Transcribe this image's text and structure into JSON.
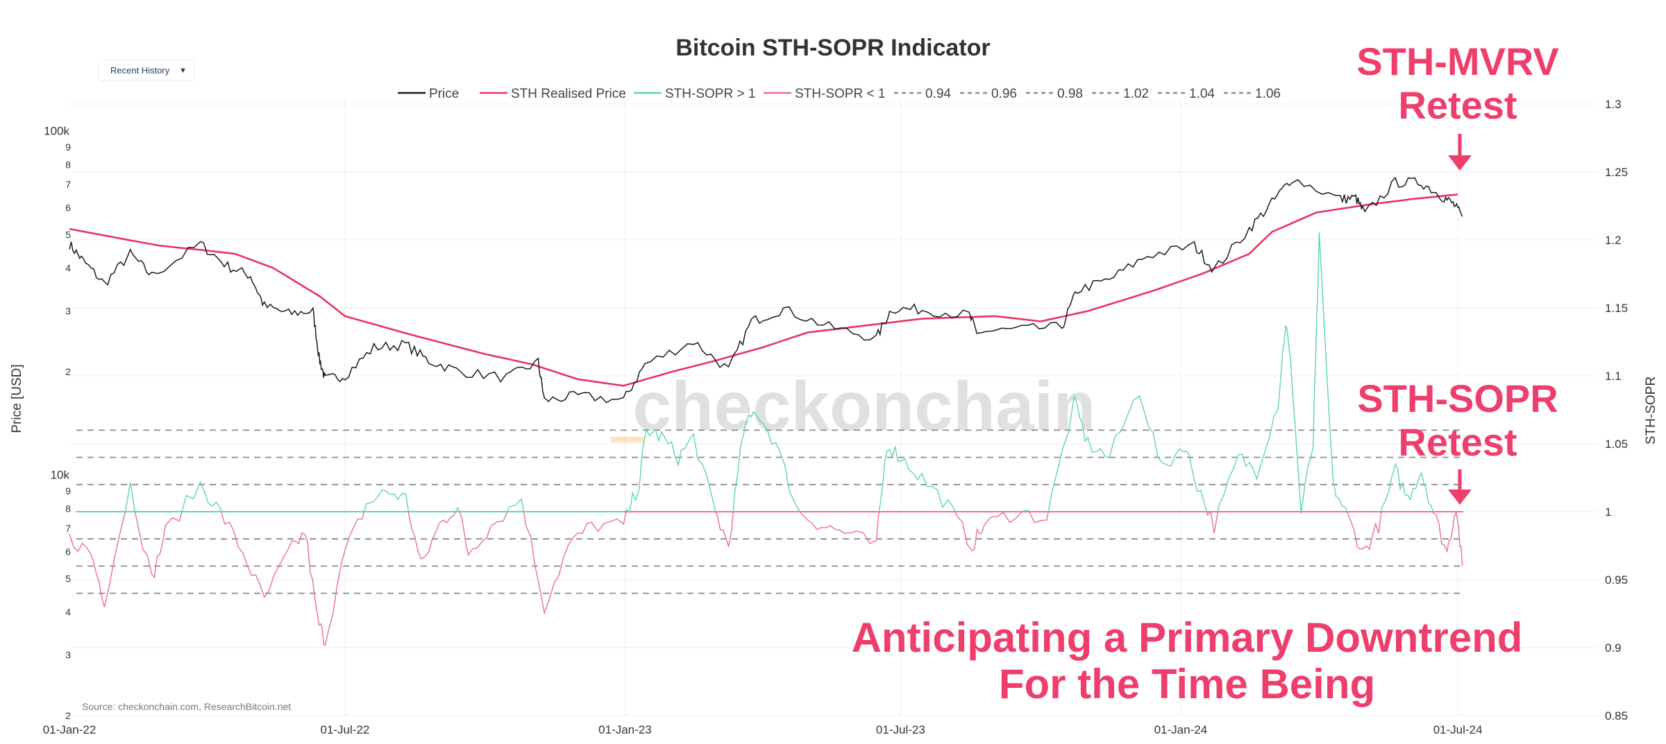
{
  "controls": {
    "history_select": "Recent History"
  },
  "source_text": "Source: checkonchain.com, ResearchBitcoin.net",
  "watermark": "checkonchain",
  "annotations": {
    "mvrv_line1": "STH-MVRV",
    "mvrv_line2": "Retest",
    "sopr_line1": "STH-SOPR",
    "sopr_line2": "Retest",
    "bottom_line1": "Anticipating a Primary Downtrend",
    "bottom_line2": "For the Time Being"
  },
  "colors": {
    "price": "#1a1a1a",
    "sth_realised": "#e8345f",
    "sopr_up": "#5fd6a0",
    "sopr_down": "#e8708e",
    "annotation": "#ee3e6b",
    "dashed": "#8c8c8c",
    "grid": "#ececec"
  },
  "chart_data": {
    "type": "line",
    "title": "Bitcoin STH-SOPR Indicator",
    "ylabel_left": "Price [USD]",
    "ylabel_right": "STH-SOPR",
    "legend_position": "top",
    "x_ticks": [
      "01-Jan-22",
      "01-Jul-22",
      "01-Jan-23",
      "01-Jul-23",
      "01-Jan-24",
      "01-Jul-24"
    ],
    "y_left_scale": "log",
    "y_left_ticks": [
      "2",
      "3",
      "4",
      "5",
      "6",
      "7",
      "8",
      "9",
      "10k",
      "2",
      "3",
      "4",
      "5",
      "6",
      "7",
      "8",
      "9",
      "100k"
    ],
    "y_left_range": [
      2000,
      120000
    ],
    "y_right_ticks": [
      "0.85",
      "0.9",
      "0.95",
      "1",
      "1.05",
      "1.1",
      "1.15",
      "1.2",
      "1.25",
      "1.3"
    ],
    "y_right_range": [
      0.85,
      1.3
    ],
    "legend": [
      "Price",
      "STH Realised Price",
      "STH-SOPR > 1",
      "STH-SOPR < 1",
      "0.94",
      "0.96",
      "0.98",
      "1.02",
      "1.04",
      "1.06"
    ],
    "reference_lines": [
      0.94,
      0.96,
      0.98,
      1.0,
      1.02,
      1.04,
      1.06
    ],
    "series": [
      {
        "name": "Price",
        "points": [
          [
            "2022-01-01",
            47000
          ],
          [
            "2022-01-10",
            42000
          ],
          [
            "2022-01-24",
            36000
          ],
          [
            "2022-02-10",
            44000
          ],
          [
            "2022-02-24",
            38000
          ],
          [
            "2022-03-28",
            47000
          ],
          [
            "2022-04-15",
            40500
          ],
          [
            "2022-04-30",
            38000
          ],
          [
            "2022-05-09",
            31000
          ],
          [
            "2022-05-25",
            29500
          ],
          [
            "2022-06-10",
            30000
          ],
          [
            "2022-06-14",
            22000
          ],
          [
            "2022-06-18",
            19000
          ],
          [
            "2022-07-01",
            19500
          ],
          [
            "2022-07-20",
            23500
          ],
          [
            "2022-08-10",
            24000
          ],
          [
            "2022-08-25",
            21500
          ],
          [
            "2022-09-15",
            20000
          ],
          [
            "2022-10-15",
            19200
          ],
          [
            "2022-11-05",
            21300
          ],
          [
            "2022-11-09",
            16500
          ],
          [
            "2022-12-01",
            17000
          ],
          [
            "2022-12-31",
            16500
          ],
          [
            "2023-01-14",
            21000
          ],
          [
            "2023-02-15",
            24500
          ],
          [
            "2023-03-10",
            20200
          ],
          [
            "2023-03-25",
            28000
          ],
          [
            "2023-04-15",
            30400
          ],
          [
            "2023-05-15",
            27000
          ],
          [
            "2023-06-15",
            25000
          ],
          [
            "2023-06-25",
            30500
          ],
          [
            "2023-07-15",
            30300
          ],
          [
            "2023-08-15",
            29200
          ],
          [
            "2023-08-20",
            26100
          ],
          [
            "2023-09-15",
            26500
          ],
          [
            "2023-10-15",
            27000
          ],
          [
            "2023-10-25",
            34500
          ],
          [
            "2023-11-15",
            37000
          ],
          [
            "2023-12-10",
            43500
          ],
          [
            "2024-01-10",
            46500
          ],
          [
            "2024-01-23",
            39500
          ],
          [
            "2024-02-15",
            52000
          ],
          [
            "2024-03-01",
            62000
          ],
          [
            "2024-03-14",
            73000
          ],
          [
            "2024-04-15",
            63500
          ],
          [
            "2024-04-25",
            64000
          ],
          [
            "2024-05-01",
            57500
          ],
          [
            "2024-05-21",
            71000
          ],
          [
            "2024-06-07",
            71000
          ],
          [
            "2024-06-20",
            65000
          ],
          [
            "2024-06-28",
            61500
          ],
          [
            "2024-07-04",
            56500
          ]
        ]
      },
      {
        "name": "STH Realised Price",
        "points": [
          [
            "2022-01-01",
            52000
          ],
          [
            "2022-02-01",
            49000
          ],
          [
            "2022-03-01",
            46500
          ],
          [
            "2022-04-01",
            45000
          ],
          [
            "2022-04-20",
            44000
          ],
          [
            "2022-05-15",
            40000
          ],
          [
            "2022-06-15",
            33000
          ],
          [
            "2022-07-01",
            29000
          ],
          [
            "2022-08-15",
            25500
          ],
          [
            "2022-10-01",
            22500
          ],
          [
            "2022-11-01",
            21000
          ],
          [
            "2022-12-01",
            19000
          ],
          [
            "2022-12-31",
            18200
          ],
          [
            "2023-02-01",
            20000
          ],
          [
            "2023-03-01",
            21500
          ],
          [
            "2023-04-01",
            23500
          ],
          [
            "2023-05-01",
            26000
          ],
          [
            "2023-06-01",
            27000
          ],
          [
            "2023-07-15",
            28500
          ],
          [
            "2023-09-01",
            29000
          ],
          [
            "2023-10-01",
            28000
          ],
          [
            "2023-11-01",
            30000
          ],
          [
            "2023-12-15",
            34500
          ],
          [
            "2024-01-15",
            38500
          ],
          [
            "2024-02-15",
            44000
          ],
          [
            "2024-03-01",
            51000
          ],
          [
            "2024-03-30",
            58000
          ],
          [
            "2024-05-01",
            61000
          ],
          [
            "2024-06-01",
            63500
          ],
          [
            "2024-07-01",
            65500
          ]
        ]
      },
      {
        "name": "STH-SOPR",
        "points": [
          [
            "2022-01-01",
            0.98
          ],
          [
            "2022-01-15",
            0.97
          ],
          [
            "2022-01-24",
            0.935
          ],
          [
            "2022-02-10",
            1.02
          ],
          [
            "2022-02-24",
            0.95
          ],
          [
            "2022-03-05",
            0.985
          ],
          [
            "2022-03-28",
            1.02
          ],
          [
            "2022-04-10",
            1.0
          ],
          [
            "2022-04-25",
            0.97
          ],
          [
            "2022-05-09",
            0.935
          ],
          [
            "2022-05-25",
            0.97
          ],
          [
            "2022-06-05",
            0.985
          ],
          [
            "2022-06-13",
            0.92
          ],
          [
            "2022-06-18",
            0.905
          ],
          [
            "2022-07-01",
            0.97
          ],
          [
            "2022-07-15",
            1.005
          ],
          [
            "2022-07-28",
            1.015
          ],
          [
            "2022-08-10",
            1.01
          ],
          [
            "2022-08-20",
            0.96
          ],
          [
            "2022-09-01",
            0.99
          ],
          [
            "2022-09-13",
            1.005
          ],
          [
            "2022-09-20",
            0.97
          ],
          [
            "2022-10-05",
            0.99
          ],
          [
            "2022-10-25",
            1.01
          ],
          [
            "2022-11-09",
            0.93
          ],
          [
            "2022-11-25",
            0.975
          ],
          [
            "2022-12-10",
            0.99
          ],
          [
            "2022-12-31",
            0.99
          ],
          [
            "2023-01-10",
            1.02
          ],
          [
            "2023-01-15",
            1.06
          ],
          [
            "2023-01-25",
            1.055
          ],
          [
            "2023-02-05",
            1.04
          ],
          [
            "2023-02-15",
            1.055
          ],
          [
            "2023-03-01",
            1.0
          ],
          [
            "2023-03-10",
            0.975
          ],
          [
            "2023-03-20",
            1.06
          ],
          [
            "2023-03-28",
            1.075
          ],
          [
            "2023-04-10",
            1.05
          ],
          [
            "2023-04-25",
            1.0
          ],
          [
            "2023-05-10",
            0.99
          ],
          [
            "2023-05-25",
            0.985
          ],
          [
            "2023-06-15",
            0.975
          ],
          [
            "2023-06-22",
            1.05
          ],
          [
            "2023-07-01",
            1.04
          ],
          [
            "2023-07-15",
            1.025
          ],
          [
            "2023-08-01",
            1.005
          ],
          [
            "2023-08-17",
            0.975
          ],
          [
            "2023-08-25",
            0.99
          ],
          [
            "2023-09-15",
            1.0
          ],
          [
            "2023-10-05",
            0.995
          ],
          [
            "2023-10-23",
            1.08
          ],
          [
            "2023-11-01",
            1.05
          ],
          [
            "2023-11-15",
            1.04
          ],
          [
            "2023-12-05",
            1.09
          ],
          [
            "2023-12-20",
            1.03
          ],
          [
            "2024-01-03",
            1.05
          ],
          [
            "2024-01-12",
            1.02
          ],
          [
            "2024-01-23",
            0.99
          ],
          [
            "2024-02-08",
            1.04
          ],
          [
            "2024-02-20",
            1.03
          ],
          [
            "2024-03-05",
            1.08
          ],
          [
            "2024-03-10",
            1.14
          ],
          [
            "2024-03-14",
            1.1
          ],
          [
            "2024-03-20",
            1.0
          ],
          [
            "2024-03-28",
            1.05
          ],
          [
            "2024-04-01",
            1.2
          ],
          [
            "2024-04-10",
            1.02
          ],
          [
            "2024-04-20",
            0.995
          ],
          [
            "2024-04-30",
            0.97
          ],
          [
            "2024-05-10",
            0.99
          ],
          [
            "2024-05-21",
            1.03
          ],
          [
            "2024-05-29",
            1.01
          ],
          [
            "2024-06-07",
            1.03
          ],
          [
            "2024-06-15",
            1.0
          ],
          [
            "2024-06-24",
            0.97
          ],
          [
            "2024-06-30",
            1.005
          ],
          [
            "2024-07-04",
            0.96
          ]
        ]
      }
    ]
  }
}
